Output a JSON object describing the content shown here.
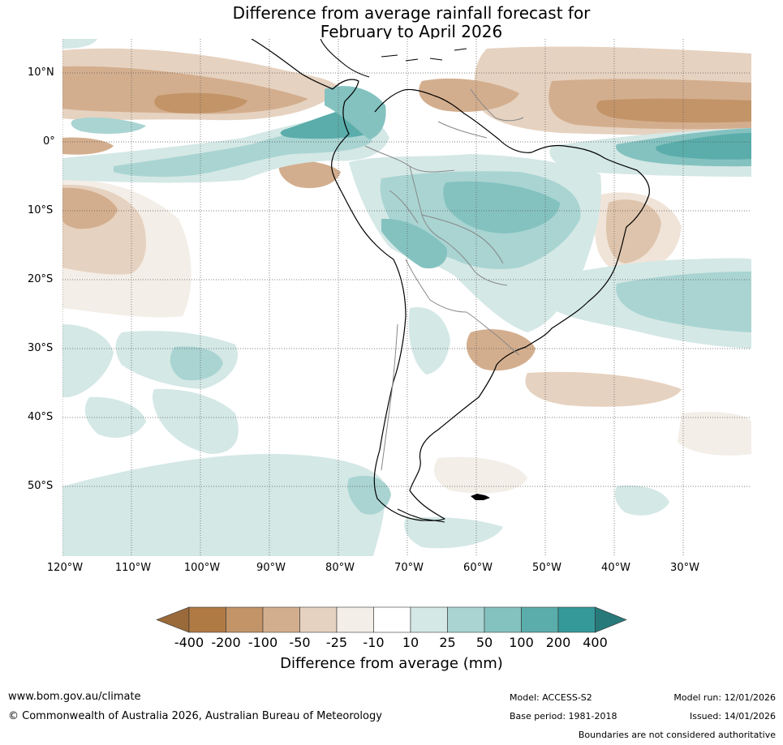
{
  "title": {
    "line1": "Difference from average rainfall forecast for",
    "line2": "February to April 2026"
  },
  "map": {
    "region": "South America",
    "lat_labels": [
      "10°N",
      "0°",
      "10°S",
      "20°S",
      "30°S",
      "40°S",
      "50°S"
    ],
    "lon_labels": [
      "120°W",
      "110°W",
      "100°W",
      "90°W",
      "80°W",
      "70°W",
      "60°W",
      "50°W",
      "40°W",
      "30°W"
    ]
  },
  "legend": {
    "ticks": [
      "-400",
      "-200",
      "-100",
      "-50",
      "-25",
      "-10",
      "10",
      "25",
      "50",
      "100",
      "200",
      "400"
    ],
    "colors": [
      "#9a6a3a",
      "#b07a45",
      "#c29468",
      "#d3ae8e",
      "#e6d2c0",
      "#f3eee7",
      "#ffffff",
      "#d4e8e6",
      "#a9d4d2",
      "#84c2c0",
      "#5aadab",
      "#35999a",
      "#287a7a"
    ],
    "label": "Difference from average (mm)"
  },
  "footer": {
    "url": "www.bom.gov.au/climate",
    "copyright": "© Commonwealth of Australia 2026, Australian Bureau of Meteorology",
    "model": "Model: ACCESS-S2",
    "base_period": "Base period: 1981-2018",
    "model_run": "Model run: 12/01/2026",
    "issued": "Issued: 14/01/2026",
    "disclaimer": "Boundaries are not considered authoritative"
  }
}
